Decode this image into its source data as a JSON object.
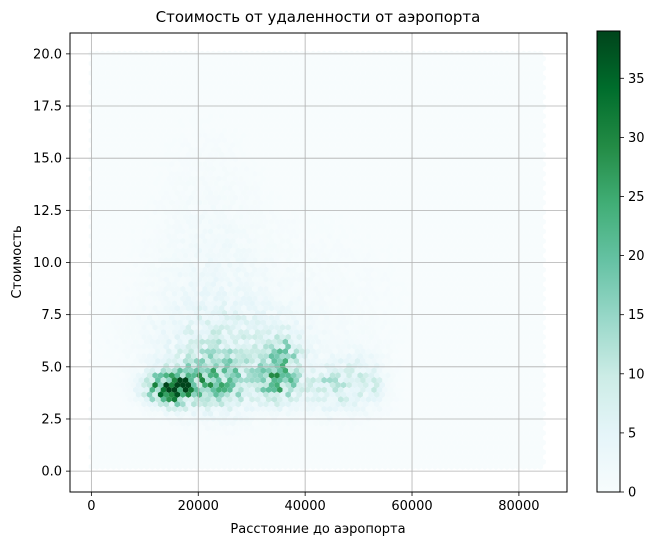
{
  "chart_data": {
    "type": "heatmap",
    "subtype": "hexbin",
    "title": "Стоимость от удаленности от аэропорта",
    "xlabel": "Расстояние до аэропорта",
    "ylabel": "Стоимость",
    "xlim": [
      -4000,
      89000
    ],
    "ylim": [
      -1.0,
      21.0
    ],
    "xticks": [
      0,
      20000,
      40000,
      60000,
      80000
    ],
    "xtick_labels": [
      "0",
      "20000",
      "40000",
      "60000",
      "80000"
    ],
    "yticks": [
      0.0,
      2.5,
      5.0,
      7.5,
      10.0,
      12.5,
      15.0,
      17.5,
      20.0
    ],
    "ytick_labels": [
      "0.0",
      "2.5",
      "5.0",
      "7.5",
      "10.0",
      "12.5",
      "15.0",
      "17.5",
      "20.0"
    ],
    "grid": true,
    "colormap": [
      "#f7fcfd",
      "#e5f5f9",
      "#ccece6",
      "#99d8c9",
      "#66c2a4",
      "#41ae76",
      "#238b45",
      "#006d2c",
      "#00441b"
    ],
    "colorbar": {
      "min": 0,
      "max": 39,
      "ticks": [
        0,
        5,
        10,
        15,
        20,
        25,
        30,
        35
      ],
      "tick_labels": [
        "0",
        "5",
        "10",
        "15",
        "20",
        "25",
        "30",
        "35"
      ]
    },
    "hex_extent": {
      "x": [
        0,
        85000
      ],
      "y": [
        0,
        20
      ]
    },
    "density_clusters": [
      {
        "x": 15000,
        "y": 4.0,
        "sx": 3000,
        "sy": 0.5,
        "peak": 38
      },
      {
        "x": 21000,
        "y": 4.3,
        "sx": 4000,
        "sy": 0.9,
        "peak": 15
      },
      {
        "x": 27000,
        "y": 4.3,
        "sx": 3000,
        "sy": 0.9,
        "peak": 10
      },
      {
        "x": 35000,
        "y": 4.3,
        "sx": 2500,
        "sy": 0.7,
        "peak": 22
      },
      {
        "x": 36000,
        "y": 5.8,
        "sx": 2500,
        "sy": 0.6,
        "peak": 10
      },
      {
        "x": 44000,
        "y": 4.0,
        "sx": 3000,
        "sy": 0.7,
        "peak": 10
      },
      {
        "x": 50000,
        "y": 4.3,
        "sx": 3000,
        "sy": 0.9,
        "peak": 7
      },
      {
        "x": 53500,
        "y": 4.0,
        "sx": 800,
        "sy": 0.4,
        "peak": 8
      },
      {
        "x": 25000,
        "y": 6.3,
        "sx": 9000,
        "sy": 1.2,
        "peak": 6
      },
      {
        "x": 22000,
        "y": 9.0,
        "sx": 7000,
        "sy": 2.0,
        "peak": 2
      },
      {
        "x": 22000,
        "y": 13.0,
        "sx": 6000,
        "sy": 2.5,
        "peak": 0.8
      },
      {
        "x": 40000,
        "y": 8.0,
        "sx": 12000,
        "sy": 2.5,
        "peak": 0.8
      }
    ]
  }
}
